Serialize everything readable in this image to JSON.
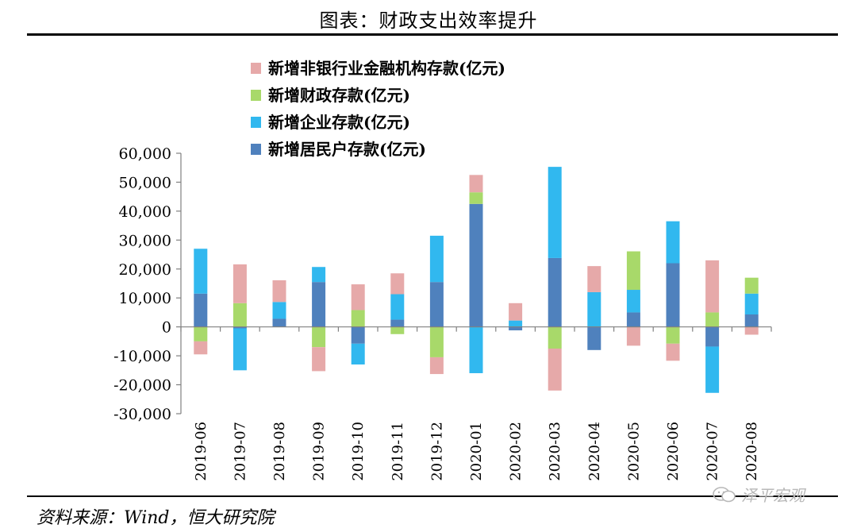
{
  "header": {
    "title": "图表：财政支出效率提升"
  },
  "footer": {
    "source": "资料来源：Wind，恒大研究院",
    "watermark": "泽平宏观"
  },
  "chart_data": {
    "type": "bar",
    "stacked": true,
    "title": "图表：财政支出效率提升",
    "ylim": [
      -30000,
      60000
    ],
    "yticks": [
      60000,
      50000,
      40000,
      30000,
      20000,
      10000,
      0,
      -10000,
      -20000,
      -30000
    ],
    "ytick_labels": [
      "60,000",
      "50,000",
      "40,000",
      "30,000",
      "20,000",
      "10,000",
      "0",
      "-10,000",
      "-20,000",
      "-30,000"
    ],
    "categories": [
      "2019-06",
      "2019-07",
      "2019-08",
      "2019-09",
      "2019-10",
      "2019-11",
      "2019-12",
      "2020-01",
      "2020-02",
      "2020-03",
      "2020-04",
      "2020-05",
      "2020-06",
      "2020-07",
      "2020-08"
    ],
    "legend": [
      "新增非银行业金融机构存款(亿元)",
      "新增财政存款(亿元)",
      "新增企业存款(亿元)",
      "新增居民户存款(亿元)"
    ],
    "series": [
      {
        "name": "新增居民户存款(亿元)",
        "color": "#4f81bd",
        "values": [
          11500,
          -500,
          2800,
          15500,
          -5800,
          2500,
          15500,
          42500,
          -1200,
          23800,
          -8000,
          5000,
          22000,
          -6800,
          4300
        ]
      },
      {
        "name": "新增企业存款(亿元)",
        "color": "#31b8ef",
        "values": [
          15500,
          -14500,
          5800,
          5200,
          -7200,
          8800,
          16000,
          -16000,
          2200,
          31500,
          12000,
          7800,
          14500,
          -16000,
          7200
        ]
      },
      {
        "name": "新增财政存款(亿元)",
        "color": "#a8d96a",
        "values": [
          -5000,
          8200,
          0,
          -7000,
          5800,
          -2500,
          -10500,
          4000,
          0,
          -7500,
          0,
          13300,
          -5800,
          5000,
          5500
        ]
      },
      {
        "name": "新增非银行业金融机构存款(亿元)",
        "color": "#e6a9a9",
        "values": [
          -4500,
          13400,
          7500,
          -8300,
          8900,
          7200,
          -5800,
          6000,
          6000,
          -14500,
          9000,
          -6500,
          -5900,
          18000,
          -2700
        ]
      }
    ]
  }
}
